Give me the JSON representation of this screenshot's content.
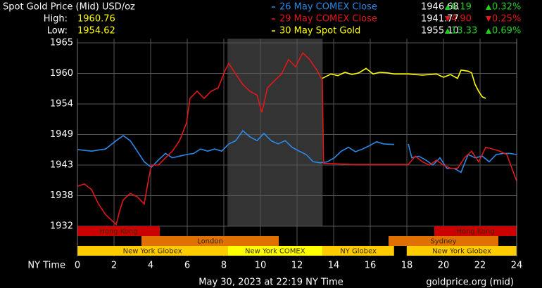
{
  "chart_data": {
    "type": "line",
    "title": "Spot Gold Price (Mid) USD/oz",
    "high_label": "High:",
    "high": "1960.76",
    "low_label": "Low:",
    "low": "1954.62",
    "legend": [
      {
        "price": "1946.68",
        "change": "6.19",
        "change_pct": "0.32%",
        "direction": "up"
      },
      {
        "price": "1941.77",
        "change": "4.90",
        "change_pct": "0.25%",
        "direction": "down"
      },
      {
        "price": "1955.10",
        "change": "13.33",
        "change_pct": "0.69%",
        "direction": "up"
      }
    ],
    "x_label": "NY Time",
    "footer": "May 30, 2023 at 22:19 NY Time",
    "source": "goldprice.org (mid)",
    "xlim": [
      0,
      24
    ],
    "xticks": [
      0,
      2,
      4,
      6,
      8,
      10,
      12,
      14,
      16,
      18,
      20,
      22,
      24
    ],
    "ylim": [
      1932,
      1965
    ],
    "yticks": [
      1932,
      {
        "value": 1937.5,
        "label": "1938"
      },
      1943,
      {
        "value": 1948.5,
        "label": "1949"
      },
      1954,
      {
        "value": 1959.5,
        "label": "1960"
      },
      1965
    ],
    "grid": true,
    "comex_hours": [
      8.2,
      13.4
    ],
    "comex_color": "#333333",
    "session_bands": [
      [
        {
          "name": "Hong Kong",
          "start": 0,
          "end": 4.5,
          "color": "#cc0000"
        },
        {
          "name": "Hong Kong",
          "start": 19.5,
          "end": 24,
          "color": "#cc0000"
        }
      ],
      [
        {
          "name": "London",
          "start": 3.5,
          "end": 11,
          "color": "#e07000"
        },
        {
          "name": "Sydney",
          "start": 17,
          "end": 23,
          "color": "#e07000"
        }
      ],
      [
        {
          "name": "New York Globex",
          "start": 0,
          "end": 8.2,
          "color": "#ffcc00"
        },
        {
          "name": "New York COMEX",
          "start": 8.2,
          "end": 13.4,
          "color": "#ffff00"
        },
        {
          "name": "NY Globex",
          "start": 13.4,
          "end": 17.3,
          "color": "#ffcc00"
        },
        {
          "name": "New York Globex",
          "start": 18,
          "end": 24,
          "color": "#ffcc00"
        }
      ]
    ],
    "series": [
      {
        "name": "26 May COMEX Close",
        "color": "#2b8ae6",
        "x": [
          0,
          0.77,
          1.54,
          2.12,
          2.5,
          2.88,
          3.27,
          3.65,
          4.04,
          4.42,
          4.81,
          5.19,
          5.58,
          5.96,
          6.35,
          6.73,
          7.12,
          7.5,
          7.88,
          8.27,
          8.65,
          9.04,
          9.42,
          9.81,
          10.19,
          10.58,
          10.96,
          11.35,
          11.73,
          12.12,
          12.5,
          12.88,
          13.27,
          13.65,
          14.04,
          14.42,
          14.81,
          15.19,
          15.58,
          15.96,
          16.35,
          16.73,
          17.31,
          17.7,
          18.08,
          18.27,
          18.65,
          19.04,
          19.42,
          19.81,
          20.19,
          20.58,
          20.96,
          21.35,
          21.73,
          22.12,
          22.5,
          22.88,
          23.27,
          23.65,
          24
        ],
        "values": [
          1945.8,
          1945.5,
          1945.9,
          1947.4,
          1948.3,
          1947.4,
          1945.5,
          1943.6,
          1942.6,
          1943.9,
          1945.1,
          1944.3,
          1944.6,
          1944.9,
          1945.1,
          1945.9,
          1945.5,
          1945.9,
          1945.5,
          1946.8,
          1947.4,
          1949.2,
          1948.1,
          1947.4,
          1948.7,
          1947.4,
          1946.8,
          1947.4,
          1946.2,
          1945.5,
          1944.9,
          1943.6,
          1943.4,
          1943.6,
          1944.3,
          1945.5,
          1946.2,
          1945.4,
          1945.9,
          1946.5,
          1947.2,
          1946.8,
          1946.7,
          null,
          1946.8,
          1944.3,
          1944.6,
          1943.9,
          1943.0,
          1944.3,
          1942.4,
          1942.4,
          1941.7,
          1944.9,
          1944.3,
          1944.6,
          1943.6,
          1944.9,
          1945.1,
          1945.1,
          1944.9
        ]
      },
      {
        "name": "29 May COMEX Close",
        "color": "#e01818",
        "x": [
          0,
          0.38,
          0.77,
          1.15,
          1.54,
          1.92,
          2.12,
          2.31,
          2.5,
          2.88,
          3.27,
          3.65,
          3.85,
          4.04,
          4.42,
          4.81,
          5.19,
          5.58,
          5.96,
          6.15,
          6.54,
          6.92,
          7.31,
          7.69,
          8.08,
          8.27,
          8.65,
          9.04,
          9.42,
          9.81,
          10.08,
          10.38,
          10.77,
          11.15,
          11.54,
          11.92,
          12.31,
          12.69,
          13.08,
          13.38,
          13.45,
          15,
          17,
          18.08,
          18.46,
          18.85,
          19.23,
          19.62,
          20,
          20.38,
          20.77,
          21.15,
          21.54,
          21.92,
          22.31,
          22.69,
          23.08,
          23.46,
          24
        ],
        "values": [
          1939.2,
          1939.6,
          1938.6,
          1936.0,
          1934.1,
          1932.9,
          1932.3,
          1934.8,
          1936.7,
          1937.9,
          1937.3,
          1936.0,
          1939.8,
          1943.0,
          1943.0,
          1944.3,
          1945.5,
          1947.4,
          1950.6,
          1955.0,
          1956.3,
          1955.0,
          1956.3,
          1956.9,
          1960.1,
          1961.3,
          1959.4,
          1957.5,
          1956.3,
          1955.6,
          1952.5,
          1956.9,
          1958.2,
          1959.4,
          1962.0,
          1960.7,
          1963.2,
          1962.0,
          1960.1,
          1958.2,
          1943.3,
          1943.1,
          1943.1,
          1943.1,
          1944.6,
          1943.6,
          1943.0,
          1943.9,
          1943.0,
          1942.4,
          1942.4,
          1944.3,
          1945.5,
          1943.6,
          1946.2,
          1945.9,
          1945.5,
          1944.9,
          1940.1
        ]
      },
      {
        "name": "30 May Spot Gold",
        "color": "#ffff00",
        "x": [
          13.38,
          13.85,
          14.23,
          14.62,
          15,
          15.38,
          15.77,
          16.15,
          16.54,
          16.92,
          17.31,
          18.08,
          18.85,
          19.62,
          20,
          20.38,
          20.77,
          20.96,
          21.35,
          21.54,
          21.73,
          21.92,
          22.12,
          22.31
        ],
        "values": [
          1958.6,
          1959.4,
          1959.1,
          1959.7,
          1959.3,
          1959.6,
          1960.4,
          1959.4,
          1959.7,
          1959.6,
          1959.4,
          1959.4,
          1959.2,
          1959.4,
          1958.8,
          1959.3,
          1958.6,
          1960.1,
          1959.9,
          1959.6,
          1957.5,
          1956.3,
          1955.3,
          1955.0
        ]
      }
    ]
  }
}
